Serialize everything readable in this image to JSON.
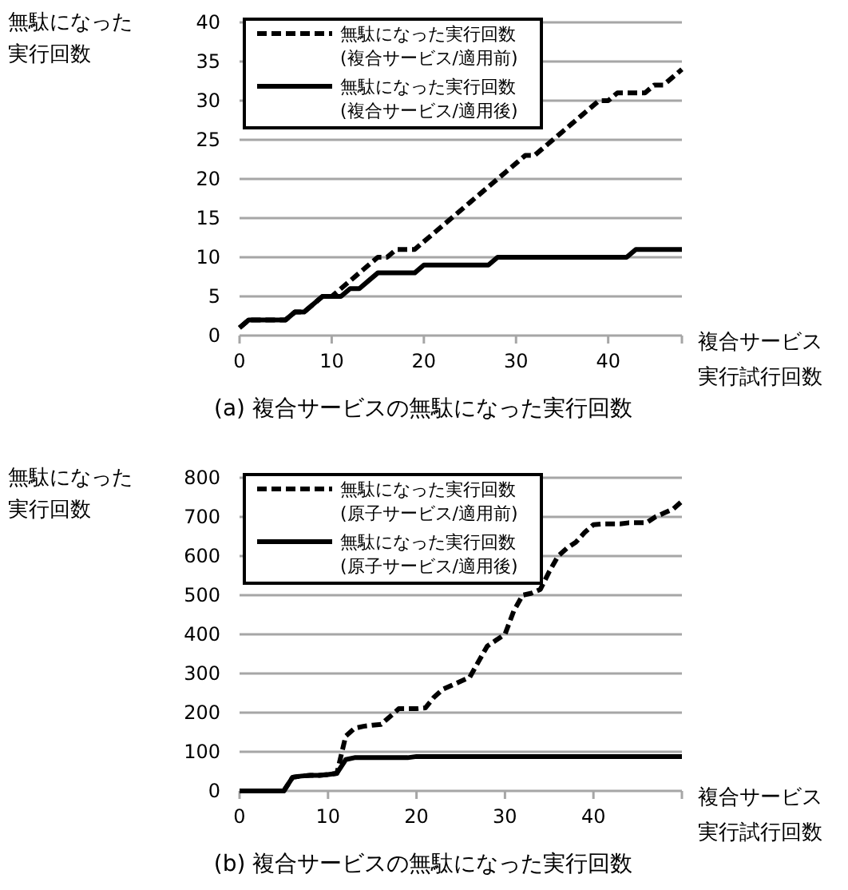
{
  "chart_data": [
    {
      "type": "line",
      "title": "(a) 複合サービスの無駄になった実行回数",
      "ylabel": "無駄になった実行回数",
      "xlabel": "複合サービス実行試行回数",
      "x": [
        0,
        1,
        2,
        3,
        4,
        5,
        6,
        7,
        8,
        9,
        10,
        11,
        12,
        13,
        14,
        15,
        16,
        17,
        18,
        19,
        20,
        21,
        22,
        23,
        24,
        25,
        26,
        27,
        28,
        29,
        30,
        31,
        32,
        33,
        34,
        35,
        36,
        37,
        38,
        39,
        40,
        41,
        42,
        43,
        44,
        45,
        46,
        47,
        48
      ],
      "xlim": [
        0,
        48
      ],
      "xticks": [
        0,
        10,
        20,
        30,
        40
      ],
      "ylim": [
        0,
        40
      ],
      "yticks": [
        0,
        5,
        10,
        15,
        20,
        25,
        30,
        35,
        40
      ],
      "grid": "y",
      "legend": "top left",
      "marker": "none",
      "series": [
        {
          "name": "無駄になった実行回数\n(複合サービス/適用前)",
          "color": "#000000",
          "line_style": "dashed",
          "values": [
            1,
            2,
            2,
            2,
            2,
            2,
            3,
            3,
            4,
            5,
            5,
            6,
            7,
            8,
            9,
            10,
            10,
            11,
            11,
            11,
            12,
            13,
            14,
            15,
            16,
            17,
            18,
            19,
            20,
            21,
            22,
            23,
            23,
            24,
            25,
            26,
            27,
            28,
            29,
            30,
            30,
            31,
            31,
            31,
            31,
            32,
            32,
            33,
            34
          ]
        },
        {
          "name": "無駄になった実行回数\n(複合サービス/適用後)",
          "color": "#000000",
          "line_style": "solid",
          "values": [
            1,
            2,
            2,
            2,
            2,
            2,
            3,
            3,
            4,
            5,
            5,
            5,
            6,
            6,
            7,
            8,
            8,
            8,
            8,
            8,
            9,
            9,
            9,
            9,
            9,
            9,
            9,
            9,
            10,
            10,
            10,
            10,
            10,
            10,
            10,
            10,
            10,
            10,
            10,
            10,
            10,
            10,
            10,
            11,
            11,
            11,
            11,
            11,
            11
          ]
        }
      ]
    },
    {
      "type": "line",
      "title": "(b) 複合サービスの無駄になった実行回数",
      "ylabel": "無駄になった実行回数",
      "xlabel": "複合サービス実行試行回数",
      "x": [
        0,
        1,
        2,
        3,
        4,
        5,
        6,
        7,
        8,
        9,
        10,
        11,
        12,
        13,
        14,
        15,
        16,
        17,
        18,
        19,
        20,
        21,
        22,
        23,
        24,
        25,
        26,
        27,
        28,
        29,
        30,
        31,
        32,
        33,
        34,
        35,
        36,
        37,
        38,
        39,
        40,
        41,
        42,
        43,
        44,
        45,
        46,
        47,
        48,
        49,
        50
      ],
      "xlim": [
        0,
        50
      ],
      "xticks": [
        0,
        10,
        20,
        30,
        40
      ],
      "ylim": [
        0,
        800
      ],
      "yticks": [
        0,
        100,
        200,
        300,
        400,
        500,
        600,
        700,
        800
      ],
      "grid": "y",
      "legend": "top left",
      "marker": "none",
      "series": [
        {
          "name": "無駄になった実行回数\n(原子サービス/適用前)",
          "color": "#000000",
          "line_style": "dashed",
          "values": [
            0,
            0,
            0,
            0,
            0,
            0,
            35,
            38,
            40,
            40,
            42,
            45,
            140,
            160,
            165,
            168,
            170,
            190,
            210,
            210,
            210,
            212,
            240,
            260,
            270,
            280,
            290,
            330,
            370,
            385,
            400,
            460,
            500,
            505,
            515,
            560,
            600,
            620,
            635,
            660,
            680,
            682,
            682,
            682,
            685,
            685,
            685,
            700,
            710,
            720,
            740
          ]
        },
        {
          "name": "無駄になった実行回数\n(原子サービス/適用後)",
          "color": "#000000",
          "line_style": "solid",
          "values": [
            0,
            0,
            0,
            0,
            0,
            0,
            35,
            38,
            40,
            40,
            42,
            45,
            80,
            85,
            85,
            85,
            85,
            85,
            85,
            85,
            88,
            88,
            88,
            88,
            88,
            88,
            88,
            88,
            88,
            88,
            88,
            88,
            88,
            88,
            88,
            88,
            88,
            88,
            88,
            88,
            88,
            88,
            88,
            88,
            88,
            88,
            88,
            88,
            88,
            88,
            88
          ]
        }
      ]
    }
  ]
}
